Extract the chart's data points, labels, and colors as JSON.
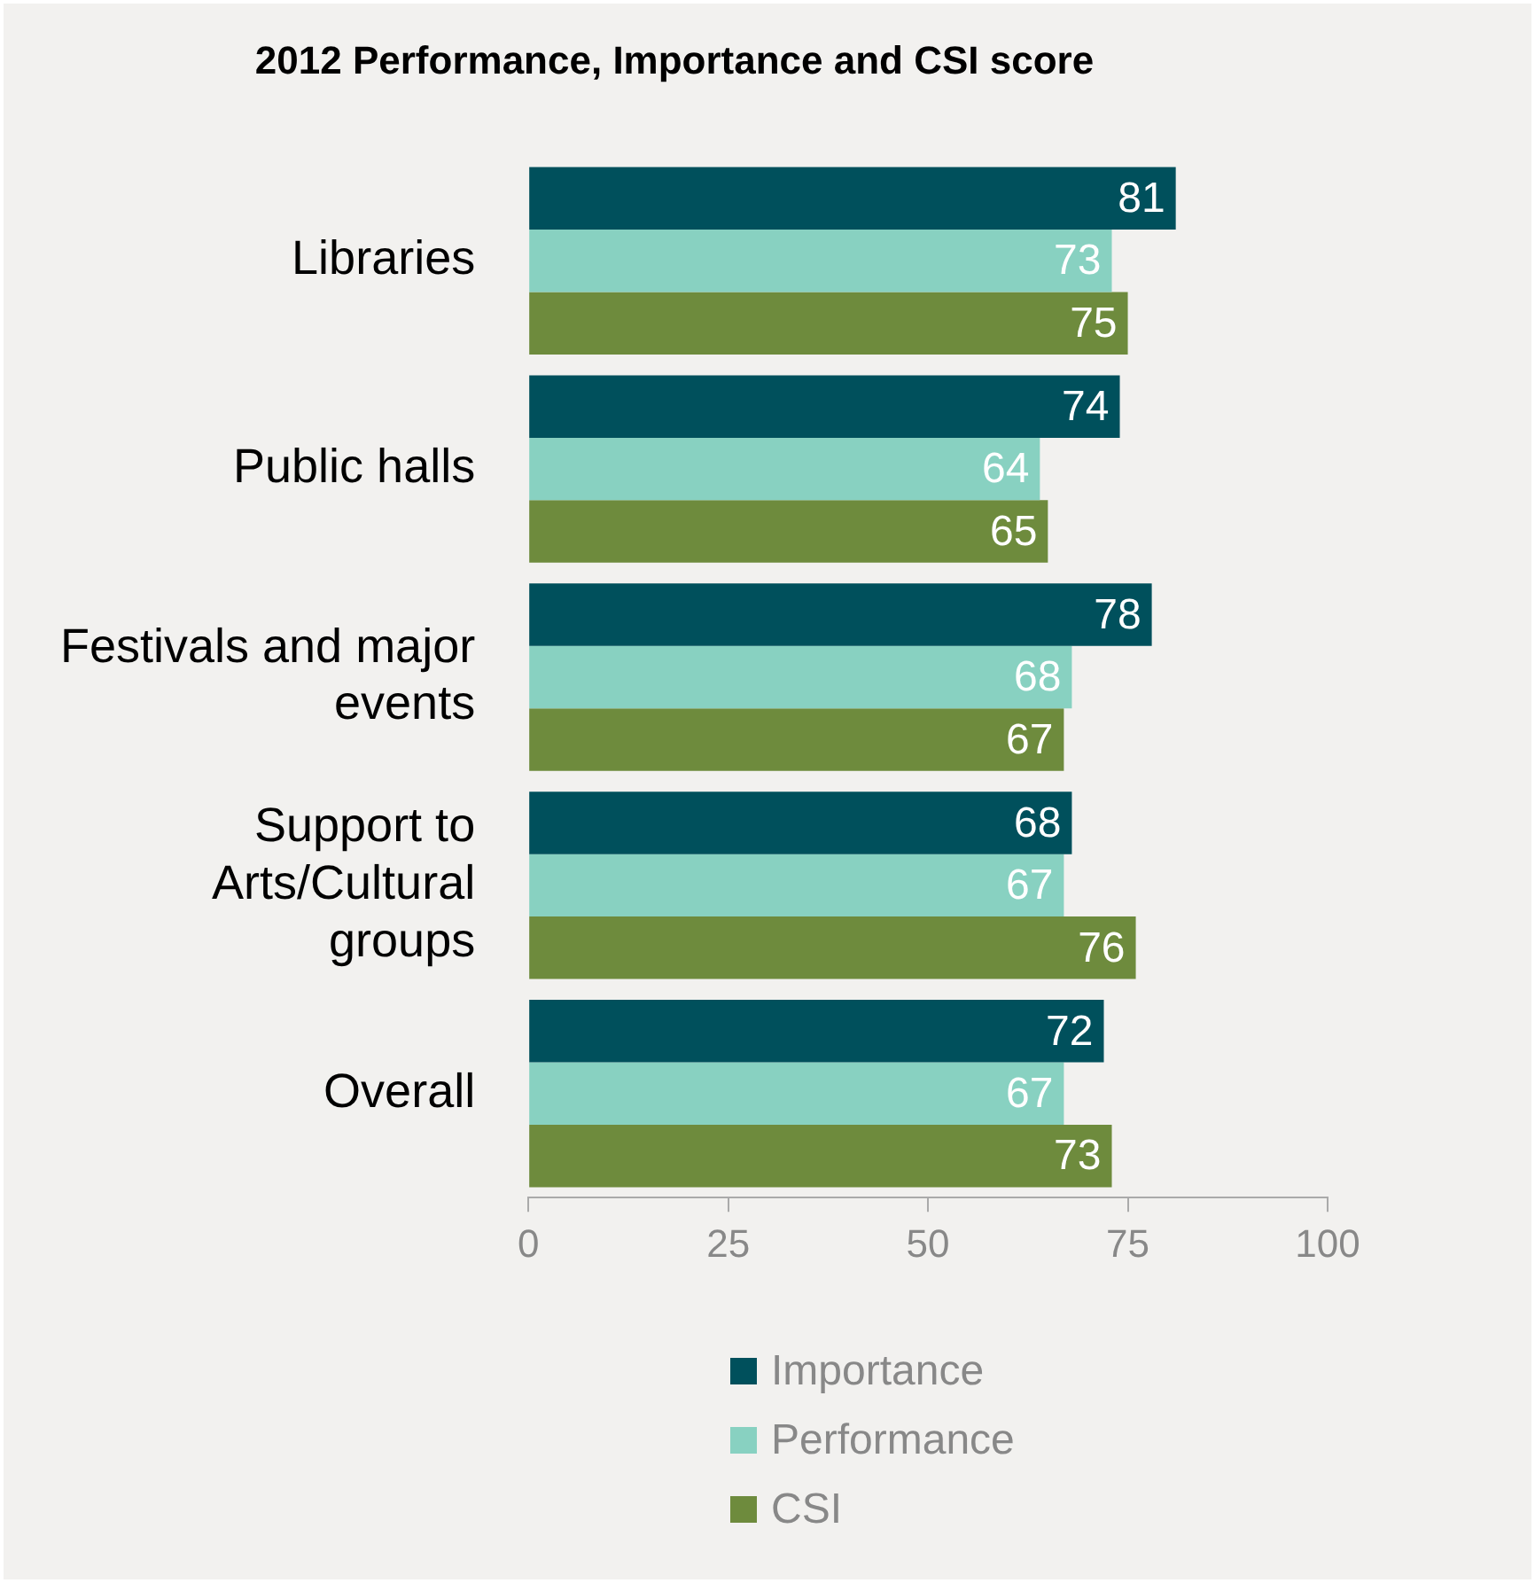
{
  "chart_data": {
    "type": "bar",
    "orientation": "horizontal",
    "title": "2012 Performance, Importance and CSI score",
    "categories": [
      "Libraries",
      "Public halls",
      "Festivals and major events",
      "Support to Arts/Cultural groups",
      "Overall"
    ],
    "series": [
      {
        "name": "Importance",
        "color": "#00505c",
        "values": [
          81,
          74,
          78,
          68,
          72
        ]
      },
      {
        "name": "Performance",
        "color": "#88d1c1",
        "values": [
          73,
          64,
          68,
          67,
          67
        ]
      },
      {
        "name": "CSI",
        "color": "#6e8b3d",
        "values": [
          75,
          65,
          67,
          76,
          73
        ]
      }
    ],
    "xlim": [
      0,
      100
    ],
    "xticks": [
      0,
      25,
      50,
      75,
      100
    ],
    "grid": false,
    "legend": "bottom",
    "data_labels": true
  }
}
